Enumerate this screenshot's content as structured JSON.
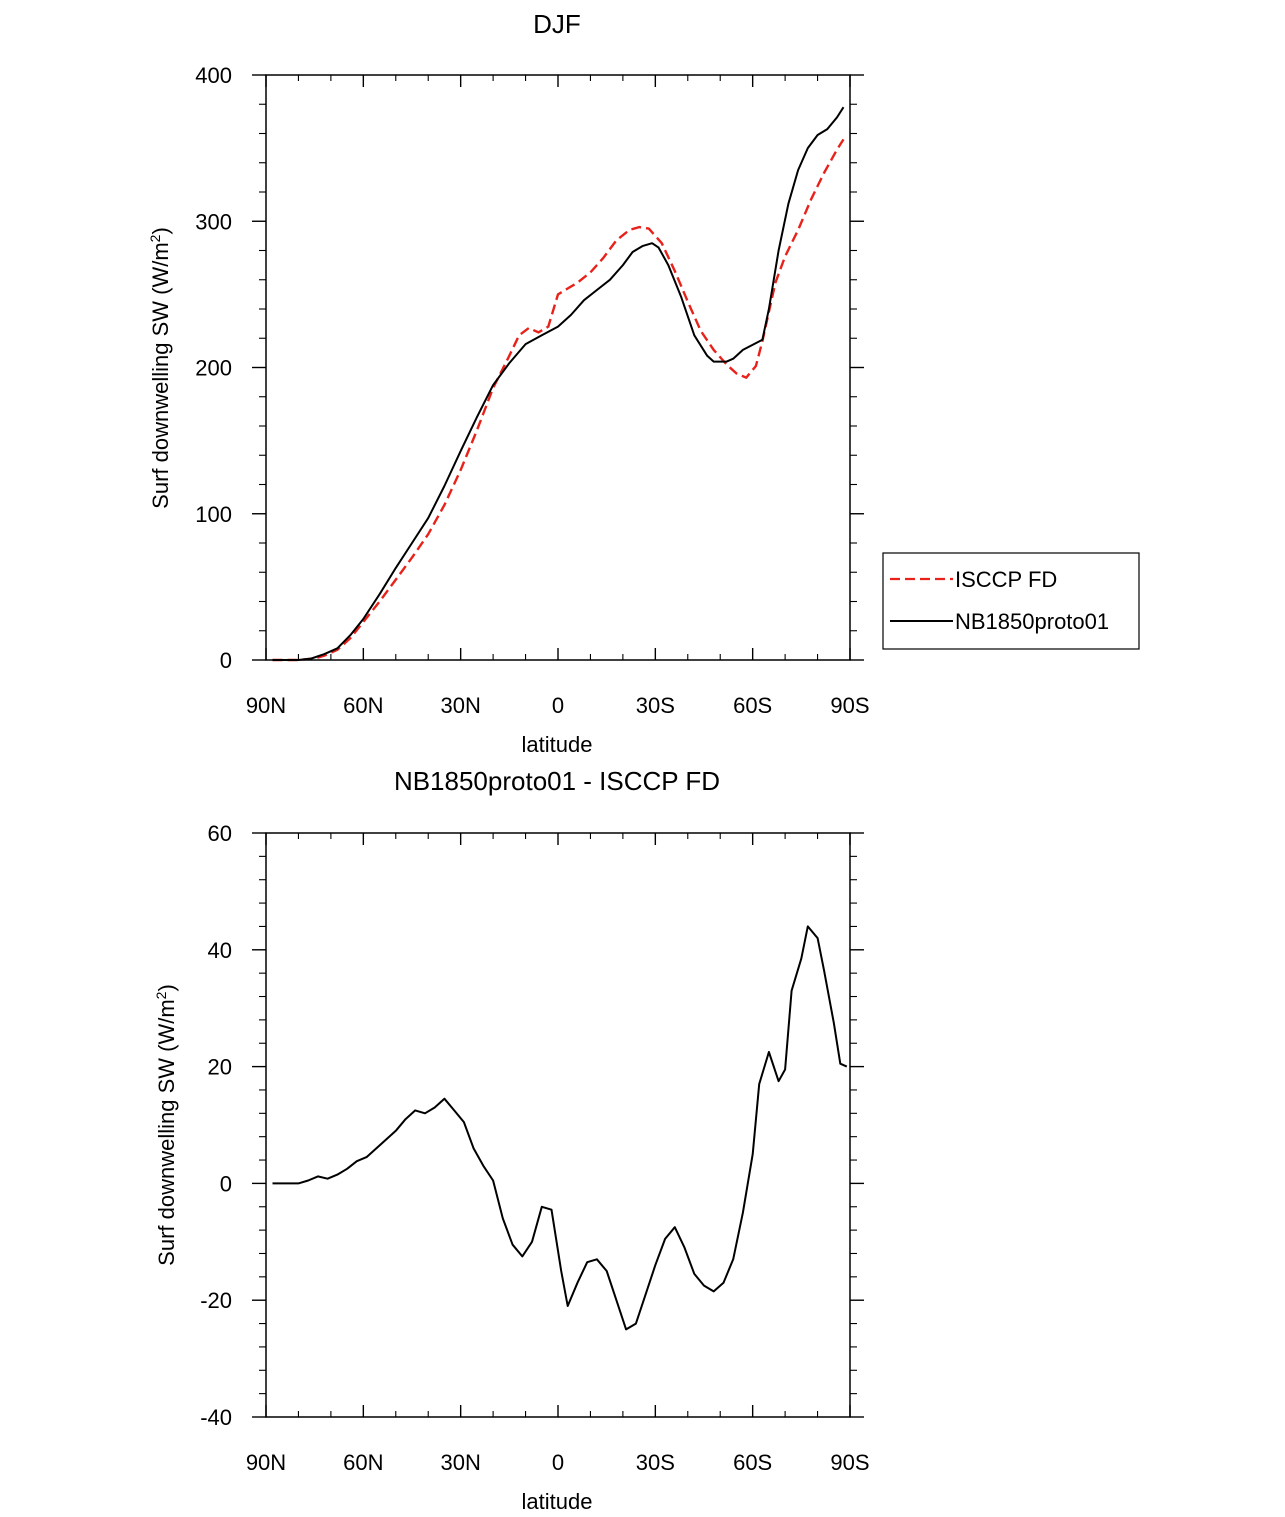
{
  "chart_data": [
    {
      "type": "line",
      "title": "DJF",
      "xlabel": "latitude",
      "ylabel": "Surf downwelling SW (W/m",
      "ylabel_sup": "2",
      "ylabel_close": ")",
      "xlim": [
        90,
        -90
      ],
      "ylim": [
        0,
        400
      ],
      "xticks": [
        90,
        60,
        30,
        0,
        -30,
        -60,
        -90
      ],
      "xtick_labels": [
        "90N",
        "60N",
        "30N",
        "0",
        "30S",
        "60S",
        "90S"
      ],
      "yticks": [
        0,
        100,
        200,
        300,
        400
      ],
      "ytick_labels": [
        "0",
        "100",
        "200",
        "300",
        "400"
      ],
      "legend": "right",
      "series": [
        {
          "name": "ISCCP FD",
          "color": "#e8221a",
          "dash": "dashed",
          "points": [
            [
              88,
              0
            ],
            [
              80,
              0
            ],
            [
              75,
              1
            ],
            [
              72,
              3
            ],
            [
              68,
              7
            ],
            [
              64,
              15
            ],
            [
              60,
              26
            ],
            [
              55,
              40
            ],
            [
              50,
              55
            ],
            [
              45,
              70
            ],
            [
              40,
              86
            ],
            [
              35,
              106
            ],
            [
              30,
              130
            ],
            [
              25,
              157
            ],
            [
              20,
              186
            ],
            [
              15,
              208
            ],
            [
              12,
              222
            ],
            [
              9,
              227
            ],
            [
              6,
              224
            ],
            [
              3,
              228
            ],
            [
              0,
              250
            ],
            [
              -3,
              254
            ],
            [
              -6,
              258
            ],
            [
              -10,
              265
            ],
            [
              -14,
              275
            ],
            [
              -18,
              287
            ],
            [
              -22,
              294
            ],
            [
              -25,
              296
            ],
            [
              -28,
              295
            ],
            [
              -32,
              285
            ],
            [
              -36,
              266
            ],
            [
              -40,
              245
            ],
            [
              -44,
              225
            ],
            [
              -48,
              212
            ],
            [
              -52,
              202
            ],
            [
              -55,
              196
            ],
            [
              -58,
              193
            ],
            [
              -61,
              201
            ],
            [
              -63,
              218
            ],
            [
              -65,
              238
            ],
            [
              -67,
              258
            ],
            [
              -70,
              276
            ],
            [
              -74,
              294
            ],
            [
              -78,
              315
            ],
            [
              -82,
              333
            ],
            [
              -86,
              349
            ],
            [
              -88,
              356
            ]
          ]
        },
        {
          "name": "NB1850proto01",
          "color": "#000000",
          "dash": "solid",
          "points": [
            [
              88,
              0
            ],
            [
              80,
              0
            ],
            [
              76,
              1
            ],
            [
              72,
              4
            ],
            [
              68,
              8
            ],
            [
              64,
              17
            ],
            [
              60,
              28
            ],
            [
              55,
              45
            ],
            [
              50,
              63
            ],
            [
              45,
              80
            ],
            [
              40,
              97
            ],
            [
              35,
              119
            ],
            [
              30,
              143
            ],
            [
              25,
              166
            ],
            [
              20,
              188
            ],
            [
              15,
              203
            ],
            [
              10,
              216
            ],
            [
              5,
              222
            ],
            [
              0,
              228
            ],
            [
              -4,
              236
            ],
            [
              -8,
              246
            ],
            [
              -12,
              253
            ],
            [
              -16,
              260
            ],
            [
              -20,
              270
            ],
            [
              -23,
              279
            ],
            [
              -26,
              283
            ],
            [
              -29,
              285
            ],
            [
              -31,
              282
            ],
            [
              -34,
              270
            ],
            [
              -38,
              248
            ],
            [
              -42,
              222
            ],
            [
              -46,
              208
            ],
            [
              -48,
              204
            ],
            [
              -52,
              204
            ],
            [
              -54,
              206
            ],
            [
              -57,
              212
            ],
            [
              -63,
              219
            ],
            [
              -65,
              240
            ],
            [
              -68,
              280
            ],
            [
              -71,
              312
            ],
            [
              -74,
              335
            ],
            [
              -77,
              350
            ],
            [
              -80,
              359
            ],
            [
              -83,
              363
            ],
            [
              -86,
              371
            ],
            [
              -88,
              378
            ]
          ]
        }
      ]
    },
    {
      "type": "line",
      "title": "NB1850proto01 - ISCCP FD",
      "xlabel": "latitude",
      "ylabel": "Surf downwelling SW (W/m",
      "ylabel_sup": "2",
      "ylabel_close": ")",
      "xlim": [
        90,
        -90
      ],
      "ylim": [
        -40,
        60
      ],
      "xticks": [
        90,
        60,
        30,
        0,
        -30,
        -60,
        -90
      ],
      "xtick_labels": [
        "90N",
        "60N",
        "30N",
        "0",
        "30S",
        "60S",
        "90S"
      ],
      "yticks": [
        -40,
        -20,
        0,
        20,
        40,
        60
      ],
      "ytick_labels": [
        "-40",
        "-20",
        "0",
        "20",
        "40",
        "60"
      ],
      "series": [
        {
          "name": "NB1850proto01 - ISCCP FD",
          "color": "#000000",
          "dash": "solid",
          "points": [
            [
              88,
              0
            ],
            [
              85,
              0
            ],
            [
              82,
              0
            ],
            [
              80,
              0
            ],
            [
              77,
              0.5
            ],
            [
              74,
              1.2
            ],
            [
              71,
              0.8
            ],
            [
              68,
              1.5
            ],
            [
              65,
              2.5
            ],
            [
              62,
              3.8
            ],
            [
              59,
              4.5
            ],
            [
              56,
              6
            ],
            [
              53,
              7.5
            ],
            [
              50,
              9
            ],
            [
              47,
              11
            ],
            [
              44,
              12.5
            ],
            [
              41,
              12
            ],
            [
              38,
              13
            ],
            [
              35,
              14.5
            ],
            [
              32,
              12.5
            ],
            [
              29,
              10.5
            ],
            [
              26,
              6
            ],
            [
              23,
              3
            ],
            [
              20,
              0.5
            ],
            [
              17,
              -6
            ],
            [
              14,
              -10.5
            ],
            [
              11,
              -12.5
            ],
            [
              8,
              -10
            ],
            [
              5,
              -4
            ],
            [
              2,
              -4.5
            ],
            [
              -1,
              -15
            ],
            [
              -3,
              -21
            ],
            [
              -6,
              -17
            ],
            [
              -9,
              -13.5
            ],
            [
              -12,
              -13
            ],
            [
              -15,
              -15
            ],
            [
              -18,
              -20
            ],
            [
              -21,
              -25
            ],
            [
              -24,
              -24
            ],
            [
              -27,
              -19
            ],
            [
              -30,
              -14
            ],
            [
              -33,
              -9.5
            ],
            [
              -36,
              -7.5
            ],
            [
              -39,
              -11
            ],
            [
              -42,
              -15.5
            ],
            [
              -45,
              -17.5
            ],
            [
              -48,
              -18.5
            ],
            [
              -51,
              -17
            ],
            [
              -54,
              -13
            ],
            [
              -57,
              -5
            ],
            [
              -60,
              5
            ],
            [
              -62,
              17
            ],
            [
              -65,
              22.5
            ],
            [
              -68,
              17.5
            ],
            [
              -70,
              19.5
            ],
            [
              -72,
              33
            ],
            [
              -75,
              38.5
            ],
            [
              -77,
              44
            ],
            [
              -80,
              42
            ],
            [
              -82,
              36.5
            ],
            [
              -85,
              27.5
            ],
            [
              -87,
              20.5
            ],
            [
              -89,
              20
            ]
          ]
        }
      ]
    }
  ]
}
